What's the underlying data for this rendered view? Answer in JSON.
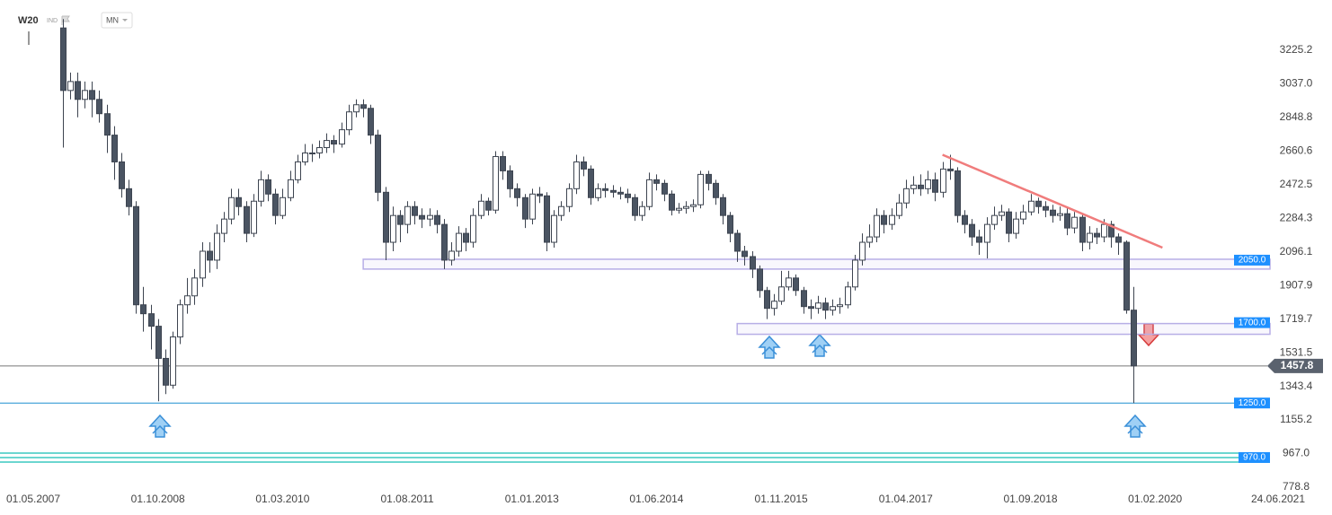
{
  "header": {
    "symbol": "W20",
    "kind": "IND",
    "interval": "MN"
  },
  "chart_data": {
    "type": "candlestick",
    "x": [
      "01.09.2007",
      "01.10.2007",
      "01.11.2007",
      "01.12.2007",
      "01.01.2008",
      "01.02.2008",
      "01.03.2008",
      "01.04.2008",
      "01.05.2008",
      "01.06.2008",
      "01.07.2008",
      "01.08.2008",
      "01.09.2008",
      "01.10.2008",
      "01.11.2008",
      "01.12.2008",
      "01.01.2009",
      "01.02.2009",
      "01.03.2009",
      "01.04.2009",
      "01.05.2009",
      "01.06.2009",
      "01.07.2009",
      "01.08.2009",
      "01.09.2009",
      "01.10.2009",
      "01.11.2009",
      "01.12.2009",
      "01.01.2010",
      "01.02.2010",
      "01.03.2010",
      "01.04.2010",
      "01.05.2010",
      "01.06.2010",
      "01.07.2010",
      "01.08.2010",
      "01.09.2010",
      "01.10.2010",
      "01.11.2010",
      "01.12.2010",
      "01.01.2011",
      "01.02.2011",
      "01.03.2011",
      "01.04.2011",
      "01.05.2011",
      "01.06.2011",
      "01.07.2011",
      "01.08.2011",
      "01.09.2011",
      "01.10.2011",
      "01.11.2011",
      "01.12.2011",
      "01.01.2012",
      "01.02.2012",
      "01.03.2012",
      "01.04.2012",
      "01.05.2012",
      "01.06.2012",
      "01.07.2012",
      "01.08.2012",
      "01.09.2012",
      "01.10.2012",
      "01.11.2012",
      "01.12.2012",
      "01.01.2013",
      "01.02.2013",
      "01.03.2013",
      "01.04.2013",
      "01.05.2013",
      "01.06.2013",
      "01.07.2013",
      "01.08.2013",
      "01.09.2013",
      "01.10.2013",
      "01.11.2013",
      "01.12.2013",
      "01.01.2014",
      "01.02.2014",
      "01.03.2014",
      "01.04.2014",
      "01.05.2014",
      "01.06.2014",
      "01.07.2014",
      "01.08.2014",
      "01.09.2014",
      "01.10.2014",
      "01.11.2014",
      "01.12.2014",
      "01.01.2015",
      "01.02.2015",
      "01.03.2015",
      "01.04.2015",
      "01.05.2015",
      "01.06.2015",
      "01.07.2015",
      "01.08.2015",
      "01.09.2015",
      "01.10.2015",
      "01.11.2015",
      "01.12.2015",
      "01.01.2016",
      "01.02.2016",
      "01.03.2016",
      "01.04.2016",
      "01.05.2016",
      "01.06.2016",
      "01.07.2016",
      "01.08.2016",
      "01.09.2016",
      "01.10.2016",
      "01.11.2016",
      "01.12.2016",
      "01.01.2017",
      "01.02.2017",
      "01.03.2017",
      "01.04.2017",
      "01.05.2017",
      "01.06.2017",
      "01.07.2017",
      "01.08.2017",
      "01.09.2017",
      "01.10.2017",
      "01.11.2017",
      "01.12.2017",
      "01.01.2018",
      "01.02.2018",
      "01.03.2018",
      "01.04.2018",
      "01.05.2018",
      "01.06.2018",
      "01.07.2018",
      "01.08.2018",
      "01.09.2018",
      "01.10.2018",
      "01.11.2018",
      "01.12.2018",
      "01.01.2019",
      "01.02.2019",
      "01.03.2019",
      "01.04.2019",
      "01.05.2019",
      "01.06.2019",
      "01.07.2019",
      "01.08.2019",
      "01.09.2019",
      "01.10.2019",
      "01.11.2019"
    ],
    "open": [
      3350,
      3000,
      3050,
      2950,
      3000,
      2950,
      2870,
      2750,
      2600,
      2450,
      2350,
      1800,
      1750,
      1680,
      1500,
      1350,
      1620,
      1800,
      1850,
      1950,
      2100,
      2050,
      2200,
      2280,
      2400,
      2350,
      2200,
      2380,
      2500,
      2420,
      2300,
      2400,
      2500,
      2600,
      2650,
      2650,
      2680,
      2720,
      2700,
      2780,
      2880,
      2920,
      2900,
      2750,
      2430,
      2150,
      2300,
      2250,
      2350,
      2300,
      2280,
      2300,
      2250,
      2050,
      2100,
      2200,
      2150,
      2300,
      2380,
      2330,
      2630,
      2550,
      2450,
      2400,
      2280,
      2420,
      2410,
      2150,
      2300,
      2350,
      2450,
      2600,
      2560,
      2400,
      2450,
      2440,
      2430,
      2420,
      2400,
      2300,
      2350,
      2500,
      2480,
      2420,
      2330,
      2340,
      2350,
      2360,
      2530,
      2480,
      2400,
      2300,
      2200,
      2100,
      2070,
      2000,
      1880,
      1780,
      1820,
      1900,
      1950,
      1880,
      1790,
      1780,
      1810,
      1770,
      1790,
      1800,
      1900,
      2050,
      2150,
      2180,
      2300,
      2250,
      2300,
      2370,
      2450,
      2470,
      2450,
      2500,
      2430,
      2560,
      2550,
      2300,
      2250,
      2180,
      2150,
      2250,
      2300,
      2320,
      2200,
      2280,
      2320,
      2380,
      2350,
      2330,
      2300,
      2310,
      2230,
      2290,
      2150,
      2200,
      2180,
      2250,
      2180,
      2150,
      1770
    ],
    "high": [
      3400,
      3100,
      3100,
      3050,
      3050,
      3000,
      2920,
      2800,
      2650,
      2500,
      2380,
      1900,
      1800,
      1720,
      1550,
      1650,
      1830,
      1950,
      2000,
      2150,
      2150,
      2250,
      2320,
      2450,
      2450,
      2380,
      2420,
      2550,
      2530,
      2450,
      2450,
      2550,
      2640,
      2700,
      2700,
      2720,
      2760,
      2750,
      2820,
      2920,
      2950,
      2950,
      2920,
      2780,
      2460,
      2350,
      2330,
      2380,
      2380,
      2340,
      2340,
      2330,
      2280,
      2150,
      2240,
      2230,
      2340,
      2420,
      2400,
      2660,
      2660,
      2580,
      2480,
      2420,
      2450,
      2460,
      2430,
      2330,
      2380,
      2480,
      2640,
      2630,
      2580,
      2480,
      2480,
      2470,
      2460,
      2450,
      2420,
      2380,
      2540,
      2530,
      2500,
      2440,
      2370,
      2380,
      2390,
      2550,
      2550,
      2500,
      2420,
      2320,
      2220,
      2130,
      2100,
      2020,
      1900,
      1860,
      1990,
      1990,
      1970,
      1900,
      1830,
      1850,
      1840,
      1830,
      1840,
      1930,
      2080,
      2200,
      2250,
      2340,
      2330,
      2340,
      2420,
      2500,
      2520,
      2530,
      2550,
      2540,
      2600,
      2640,
      2570,
      2330,
      2280,
      2220,
      2290,
      2350,
      2360,
      2340,
      2320,
      2360,
      2420,
      2400,
      2380,
      2360,
      2350,
      2340,
      2320,
      2310,
      2240,
      2230,
      2280,
      2270,
      2200,
      2160,
      1900
    ],
    "low": [
      2680,
      2950,
      2850,
      2900,
      2850,
      2820,
      2650,
      2500,
      2400,
      2300,
      1750,
      1650,
      1550,
      1260,
      1300,
      1330,
      1580,
      1750,
      1800,
      1900,
      1980,
      2000,
      2150,
      2250,
      2300,
      2150,
      2180,
      2350,
      2380,
      2250,
      2280,
      2380,
      2480,
      2580,
      2600,
      2620,
      2650,
      2650,
      2680,
      2750,
      2850,
      2850,
      2700,
      2380,
      2050,
      2100,
      2150,
      2200,
      2250,
      2230,
      2240,
      2200,
      2000,
      2020,
      2070,
      2100,
      2120,
      2280,
      2300,
      2310,
      2500,
      2400,
      2350,
      2230,
      2250,
      2370,
      2100,
      2120,
      2270,
      2320,
      2420,
      2520,
      2360,
      2380,
      2400,
      2400,
      2390,
      2370,
      2270,
      2270,
      2330,
      2440,
      2380,
      2300,
      2310,
      2310,
      2320,
      2340,
      2440,
      2360,
      2250,
      2150,
      2040,
      2020,
      1950,
      1840,
      1720,
      1740,
      1800,
      1880,
      1850,
      1750,
      1720,
      1750,
      1720,
      1740,
      1750,
      1780,
      1880,
      2020,
      2120,
      2150,
      2200,
      2220,
      2280,
      2340,
      2420,
      2410,
      2420,
      2380,
      2400,
      2500,
      2260,
      2200,
      2130,
      2080,
      2060,
      2220,
      2270,
      2150,
      2170,
      2250,
      2300,
      2310,
      2290,
      2260,
      2270,
      2190,
      2200,
      2100,
      2110,
      2140,
      2150,
      2120,
      2080,
      1750,
      1250
    ],
    "close": [
      3000,
      3050,
      2950,
      3000,
      2950,
      2870,
      2750,
      2600,
      2450,
      2350,
      1800,
      1750,
      1680,
      1500,
      1350,
      1620,
      1800,
      1850,
      1950,
      2100,
      2050,
      2200,
      2280,
      2400,
      2350,
      2200,
      2380,
      2500,
      2420,
      2300,
      2400,
      2500,
      2600,
      2650,
      2650,
      2680,
      2720,
      2700,
      2780,
      2880,
      2920,
      2900,
      2750,
      2430,
      2150,
      2300,
      2250,
      2350,
      2300,
      2280,
      2300,
      2250,
      2050,
      2100,
      2200,
      2150,
      2300,
      2380,
      2330,
      2630,
      2550,
      2450,
      2400,
      2280,
      2420,
      2410,
      2150,
      2300,
      2350,
      2450,
      2600,
      2560,
      2400,
      2450,
      2440,
      2430,
      2420,
      2400,
      2300,
      2350,
      2500,
      2480,
      2420,
      2330,
      2340,
      2350,
      2360,
      2530,
      2480,
      2400,
      2300,
      2200,
      2100,
      2070,
      2000,
      1880,
      1780,
      1820,
      1900,
      1950,
      1880,
      1790,
      1780,
      1810,
      1770,
      1790,
      1800,
      1900,
      2050,
      2150,
      2180,
      2300,
      2250,
      2300,
      2370,
      2450,
      2470,
      2450,
      2500,
      2430,
      2560,
      2550,
      2300,
      2250,
      2180,
      2150,
      2250,
      2300,
      2320,
      2200,
      2280,
      2320,
      2380,
      2350,
      2330,
      2300,
      2310,
      2230,
      2290,
      2150,
      2200,
      2180,
      2250,
      2180,
      2150,
      1770,
      1457.8
    ],
    "up_color": "#ffffff",
    "down_color": "#4a5462",
    "xlim": [
      "01.05.2007",
      "24.06.2021"
    ],
    "xticks": [
      "01.05.2007",
      "01.10.2008",
      "01.03.2010",
      "01.08.2011",
      "01.01.2013",
      "01.06.2014",
      "01.11.2015",
      "01.04.2017",
      "01.09.2018",
      "01.02.2020",
      "24.06.2021"
    ],
    "ylim": [
      778.8,
      3506.5
    ],
    "yticks": [
      778.8,
      {
        "value": 967,
        "label": "967.0"
      },
      1155.2,
      1343.4,
      1531.5,
      1719.7,
      1907.9,
      2096.1,
      2284.3,
      2472.5,
      2660.6,
      2848.8,
      {
        "value": 3037,
        "label": "3037.0"
      },
      3225.2
    ],
    "zones": [
      {
        "value": 2050,
        "label": "2050.0",
        "start": "01.02.2011",
        "low": 2000,
        "high": 2055
      },
      {
        "value": 1700,
        "label": "1700.0",
        "start": "01.05.2015",
        "low": 1635,
        "high": 1695
      }
    ],
    "levels": [
      {
        "value": 1250,
        "label": "1250.0",
        "color": "#1e8fd0"
      },
      {
        "value": 970,
        "label": "970.0",
        "color": "#3cc9c0"
      }
    ],
    "last_price": 1457.8,
    "trendline": {
      "x": [
        "01.09.2017",
        "01.03.2020"
      ],
      "values": [
        2640,
        2120
      ],
      "color": "#f07c7c"
    }
  }
}
